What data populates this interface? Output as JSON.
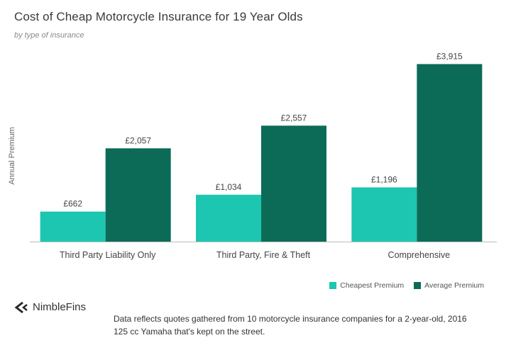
{
  "chart_data": {
    "type": "bar",
    "title": "Cost of Cheap Motorcycle Insurance for 19 Year Olds",
    "subtitle": "by type of insurance",
    "ylabel": "Annual Premium",
    "xlabel": "",
    "ylim": [
      0,
      4000
    ],
    "grid": false,
    "legend_position": "bottom-right",
    "categories": [
      "Third Party Liability Only",
      "Third Party, Fire & Theft",
      "Comprehensive"
    ],
    "series": [
      {
        "name": "Cheapest Premium",
        "color": "#1cc6b0",
        "values": [
          662,
          1034,
          1196
        ],
        "labels": [
          "£662",
          "£1,034",
          "£1,196"
        ]
      },
      {
        "name": "Average Premium",
        "color": "#0b6b57",
        "values": [
          2057,
          2557,
          3915
        ],
        "labels": [
          "£2,057",
          "£2,557",
          "£3,915"
        ]
      }
    ]
  },
  "brand": {
    "name": "NimbleFins"
  },
  "footnote": "Data reflects quotes gathered from 10 motorcycle insurance companies for a 2-year-old, 2016 125 cc Yamaha that's kept on the street."
}
